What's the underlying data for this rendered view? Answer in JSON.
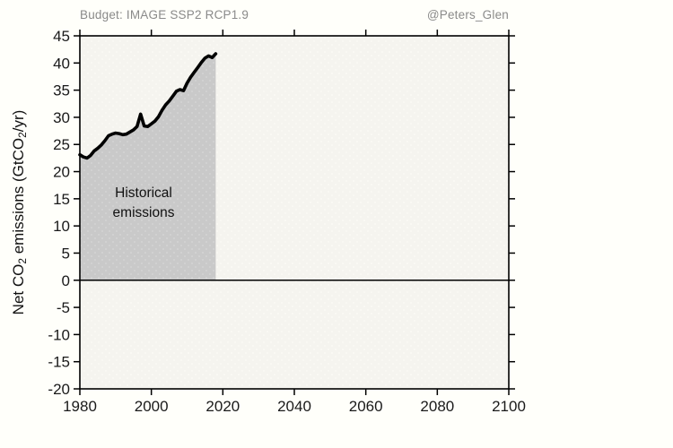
{
  "header": {
    "title": "Budget: IMAGE SSP2 RCP1.9",
    "watermark": "@Peters_Glen"
  },
  "colors": {
    "outer_background": "#fffffa",
    "plot_background": "#f5f4ef",
    "area_fill": "#c9c9c9",
    "line": "#000000",
    "axis": "#000000",
    "tick_label": "#1a1a1a",
    "header_text": "#8a8a8a"
  },
  "chart_data": {
    "type": "line",
    "title": "Budget: IMAGE SSP2 RCP1.9",
    "ylabel": "Net CO2 emissions (GtCO2/yr)",
    "ylabel_parts": {
      "p0": "Net CO",
      "s0": "2",
      "p1": " emissions (GtCO",
      "s1": "2",
      "p2": "/yr)"
    },
    "xlabel": "",
    "xlim": [
      1980,
      2100
    ],
    "ylim": [
      -20,
      45
    ],
    "xticks": [
      1980,
      2000,
      2020,
      2040,
      2060,
      2080,
      2100
    ],
    "yticks": [
      -20,
      -15,
      -10,
      -5,
      0,
      5,
      10,
      15,
      20,
      25,
      30,
      35,
      40,
      45
    ],
    "grid": false,
    "legend_position": "none",
    "zero_line": true,
    "annotation": {
      "line1": "Historical",
      "line2": "emissions"
    },
    "series": [
      {
        "name": "Historical emissions",
        "fill_to_zero": true,
        "x": [
          1980,
          1981,
          1982,
          1983,
          1984,
          1985,
          1986,
          1987,
          1988,
          1989,
          1990,
          1991,
          1992,
          1993,
          1994,
          1995,
          1996,
          1997,
          1998,
          1999,
          2000,
          2001,
          2002,
          2003,
          2004,
          2005,
          2006,
          2007,
          2008,
          2009,
          2010,
          2011,
          2012,
          2013,
          2014,
          2015,
          2016,
          2017,
          2018
        ],
        "y": [
          23.1,
          22.7,
          22.5,
          23.0,
          23.8,
          24.3,
          24.9,
          25.7,
          26.6,
          26.9,
          27.1,
          27.0,
          26.8,
          26.9,
          27.3,
          27.7,
          28.3,
          30.6,
          28.4,
          28.3,
          28.8,
          29.3,
          30.1,
          31.3,
          32.3,
          33.0,
          33.9,
          34.8,
          35.1,
          34.9,
          36.3,
          37.4,
          38.3,
          39.2,
          40.1,
          40.9,
          41.3,
          41.0,
          41.7
        ]
      }
    ]
  }
}
